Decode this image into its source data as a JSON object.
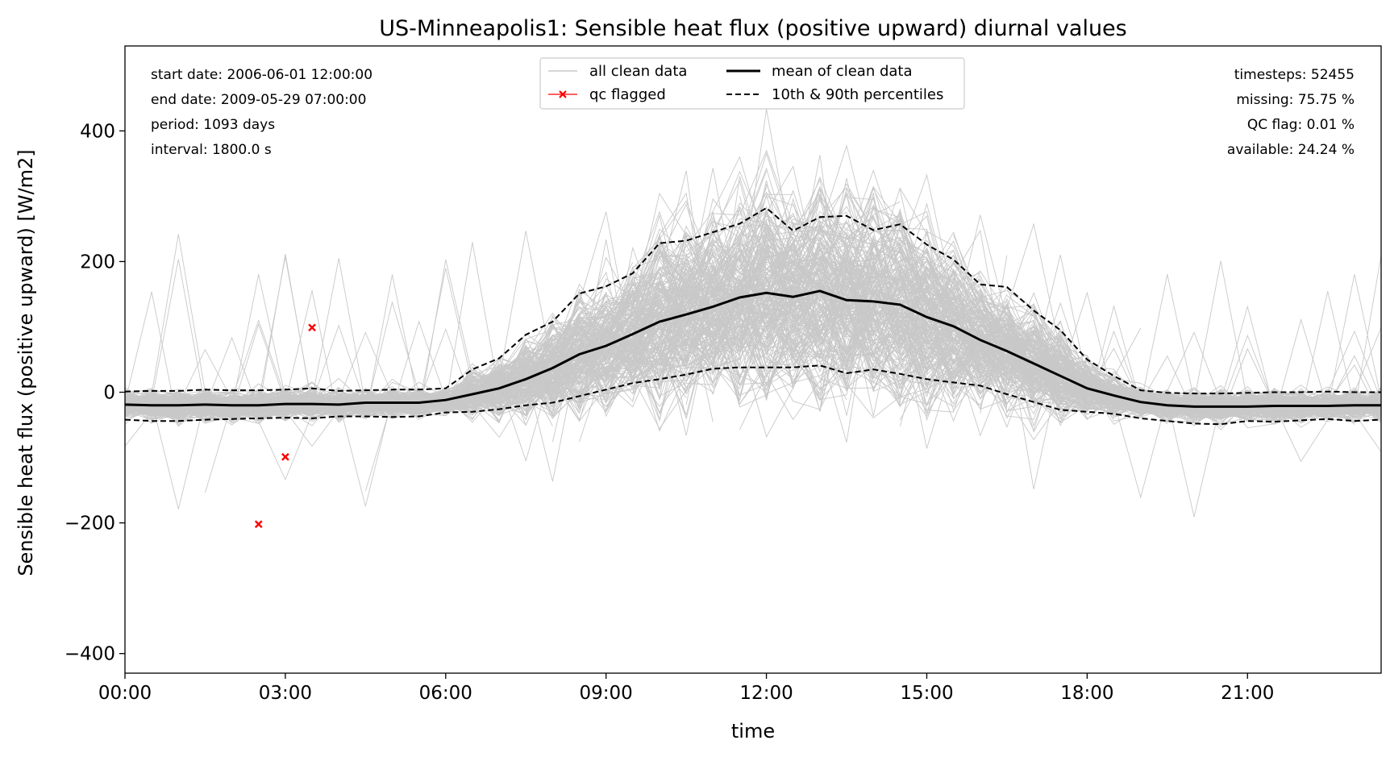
{
  "chart_data": {
    "type": "line",
    "title": "US-Minneapolis1: Sensible heat flux (positive upward) diurnal values",
    "xlabel": "time",
    "ylabel": "Sensible heat flux (positive upward) [W/m2]",
    "xlim_hours": [
      0,
      23.5
    ],
    "ylim": [
      -430,
      530
    ],
    "x_ticks": [
      "00:00",
      "03:00",
      "06:00",
      "09:00",
      "12:00",
      "15:00",
      "18:00",
      "21:00"
    ],
    "y_ticks": [
      -400,
      -200,
      0,
      200,
      400
    ],
    "grid": false,
    "legend": {
      "placement": "top-center",
      "entries": [
        "all clean data",
        "qc flagged",
        "mean of clean data",
        "10th & 90th percentiles"
      ]
    },
    "info_left": [
      "start date: 2006-06-01 12:00:00",
      "end date: 2009-05-29 07:00:00",
      "period: 1093 days",
      "interval: 1800.0 s"
    ],
    "info_right": [
      "timesteps: 52455",
      "missing: 75.75 %",
      "QC flag: 0.01 %",
      "available: 24.24 %"
    ],
    "x_hours": [
      0,
      0.5,
      1,
      1.5,
      2,
      2.5,
      3,
      3.5,
      4,
      4.5,
      5,
      5.5,
      6,
      6.5,
      7,
      7.5,
      8,
      8.5,
      9,
      9.5,
      10,
      10.5,
      11,
      11.5,
      12,
      12.5,
      13,
      13.5,
      14,
      14.5,
      15,
      15.5,
      16,
      16.5,
      17,
      17.5,
      18,
      18.5,
      19,
      19.5,
      20,
      20.5,
      21,
      21.5,
      22,
      22.5,
      23,
      23.5
    ],
    "series": [
      {
        "name": "mean of clean data",
        "values": [
          -19,
          -20,
          -20,
          -19,
          -20,
          -20,
          -18,
          -18,
          -19,
          -16,
          -16,
          -16,
          -12,
          -3,
          6,
          20,
          37,
          58,
          71,
          89,
          108,
          119,
          131,
          145,
          152,
          146,
          155,
          141,
          139,
          134,
          115,
          101,
          80,
          63,
          44,
          25,
          6,
          -5,
          -15,
          -20,
          -22,
          -22,
          -22,
          -21,
          -21,
          -21,
          -20,
          -20
        ]
      },
      {
        "name": "10th & 90th percentiles",
        "values_p90": [
          1,
          2,
          2,
          4,
          3,
          3,
          4,
          6,
          2,
          3,
          4,
          4,
          6,
          35,
          52,
          88,
          108,
          151,
          162,
          182,
          228,
          232,
          245,
          258,
          282,
          247,
          268,
          270,
          248,
          257,
          226,
          203,
          165,
          161,
          125,
          95,
          50,
          25,
          3,
          -1,
          -2,
          -2,
          -1,
          0,
          0,
          1,
          0,
          0
        ],
        "values_p10": [
          -42,
          -44,
          -44,
          -42,
          -41,
          -40,
          -39,
          -40,
          -37,
          -37,
          -38,
          -37,
          -31,
          -30,
          -26,
          -20,
          -16,
          -6,
          4,
          14,
          20,
          27,
          36,
          38,
          38,
          38,
          41,
          29,
          35,
          28,
          20,
          15,
          10,
          -3,
          -15,
          -27,
          -30,
          -33,
          -40,
          -44,
          -48,
          -49,
          -44,
          -45,
          -43,
          -41,
          -44,
          -42
        ]
      }
    ],
    "qc_flagged_points": [
      {
        "x_hours": 2.5,
        "y": -202
      },
      {
        "x_hours": 3.0,
        "y": -99
      },
      {
        "x_hours": 3.5,
        "y": 99
      }
    ],
    "colors": {
      "clean_data": "#c8c8c8",
      "mean": "#000000",
      "percentiles": "#000000",
      "qc_flagged": "#ff0000"
    }
  }
}
